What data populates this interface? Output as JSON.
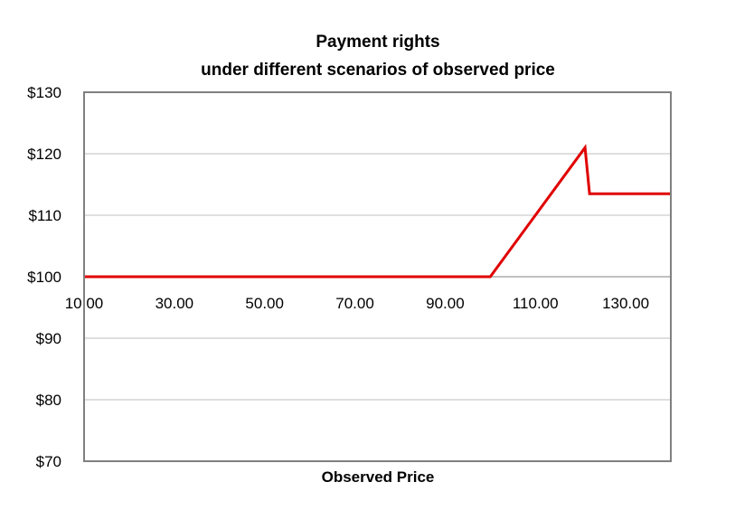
{
  "chart_data": {
    "type": "line",
    "title": "Payment rights",
    "subtitle": "under different scenarios of observed price",
    "xlabel": "Observed Price",
    "ylabel": "",
    "xlim": [
      10,
      140
    ],
    "ylim": [
      70,
      130
    ],
    "y_ticks": [
      {
        "value": 130,
        "label": "$130"
      },
      {
        "value": 120,
        "label": "$120"
      },
      {
        "value": 110,
        "label": "$110"
      },
      {
        "value": 100,
        "label": "$100"
      },
      {
        "value": 90,
        "label": "$90"
      },
      {
        "value": 80,
        "label": "$80"
      },
      {
        "value": 70,
        "label": "$70"
      }
    ],
    "x_ticks": [
      {
        "value": 10,
        "label": "10.00"
      },
      {
        "value": 30,
        "label": "30.00"
      },
      {
        "value": 50,
        "label": "50.00"
      },
      {
        "value": 70,
        "label": "70.00"
      },
      {
        "value": 90,
        "label": "90.00"
      },
      {
        "value": 110,
        "label": "110.00"
      },
      {
        "value": 130,
        "label": "130.00"
      }
    ],
    "x_axis_crosses_at": 100,
    "grid": "horizontal",
    "legend": "none",
    "series": [
      {
        "color": "#e00000",
        "points": [
          {
            "x": 10,
            "y": 100
          },
          {
            "x": 100,
            "y": 100
          },
          {
            "x": 121,
            "y": 121
          },
          {
            "x": 122,
            "y": 113.5
          },
          {
            "x": 140,
            "y": 113.5
          }
        ]
      }
    ],
    "colors": {
      "line": "#e00000",
      "grid": "#bfbfbf",
      "frame": "#808080",
      "text": "#000000"
    }
  }
}
